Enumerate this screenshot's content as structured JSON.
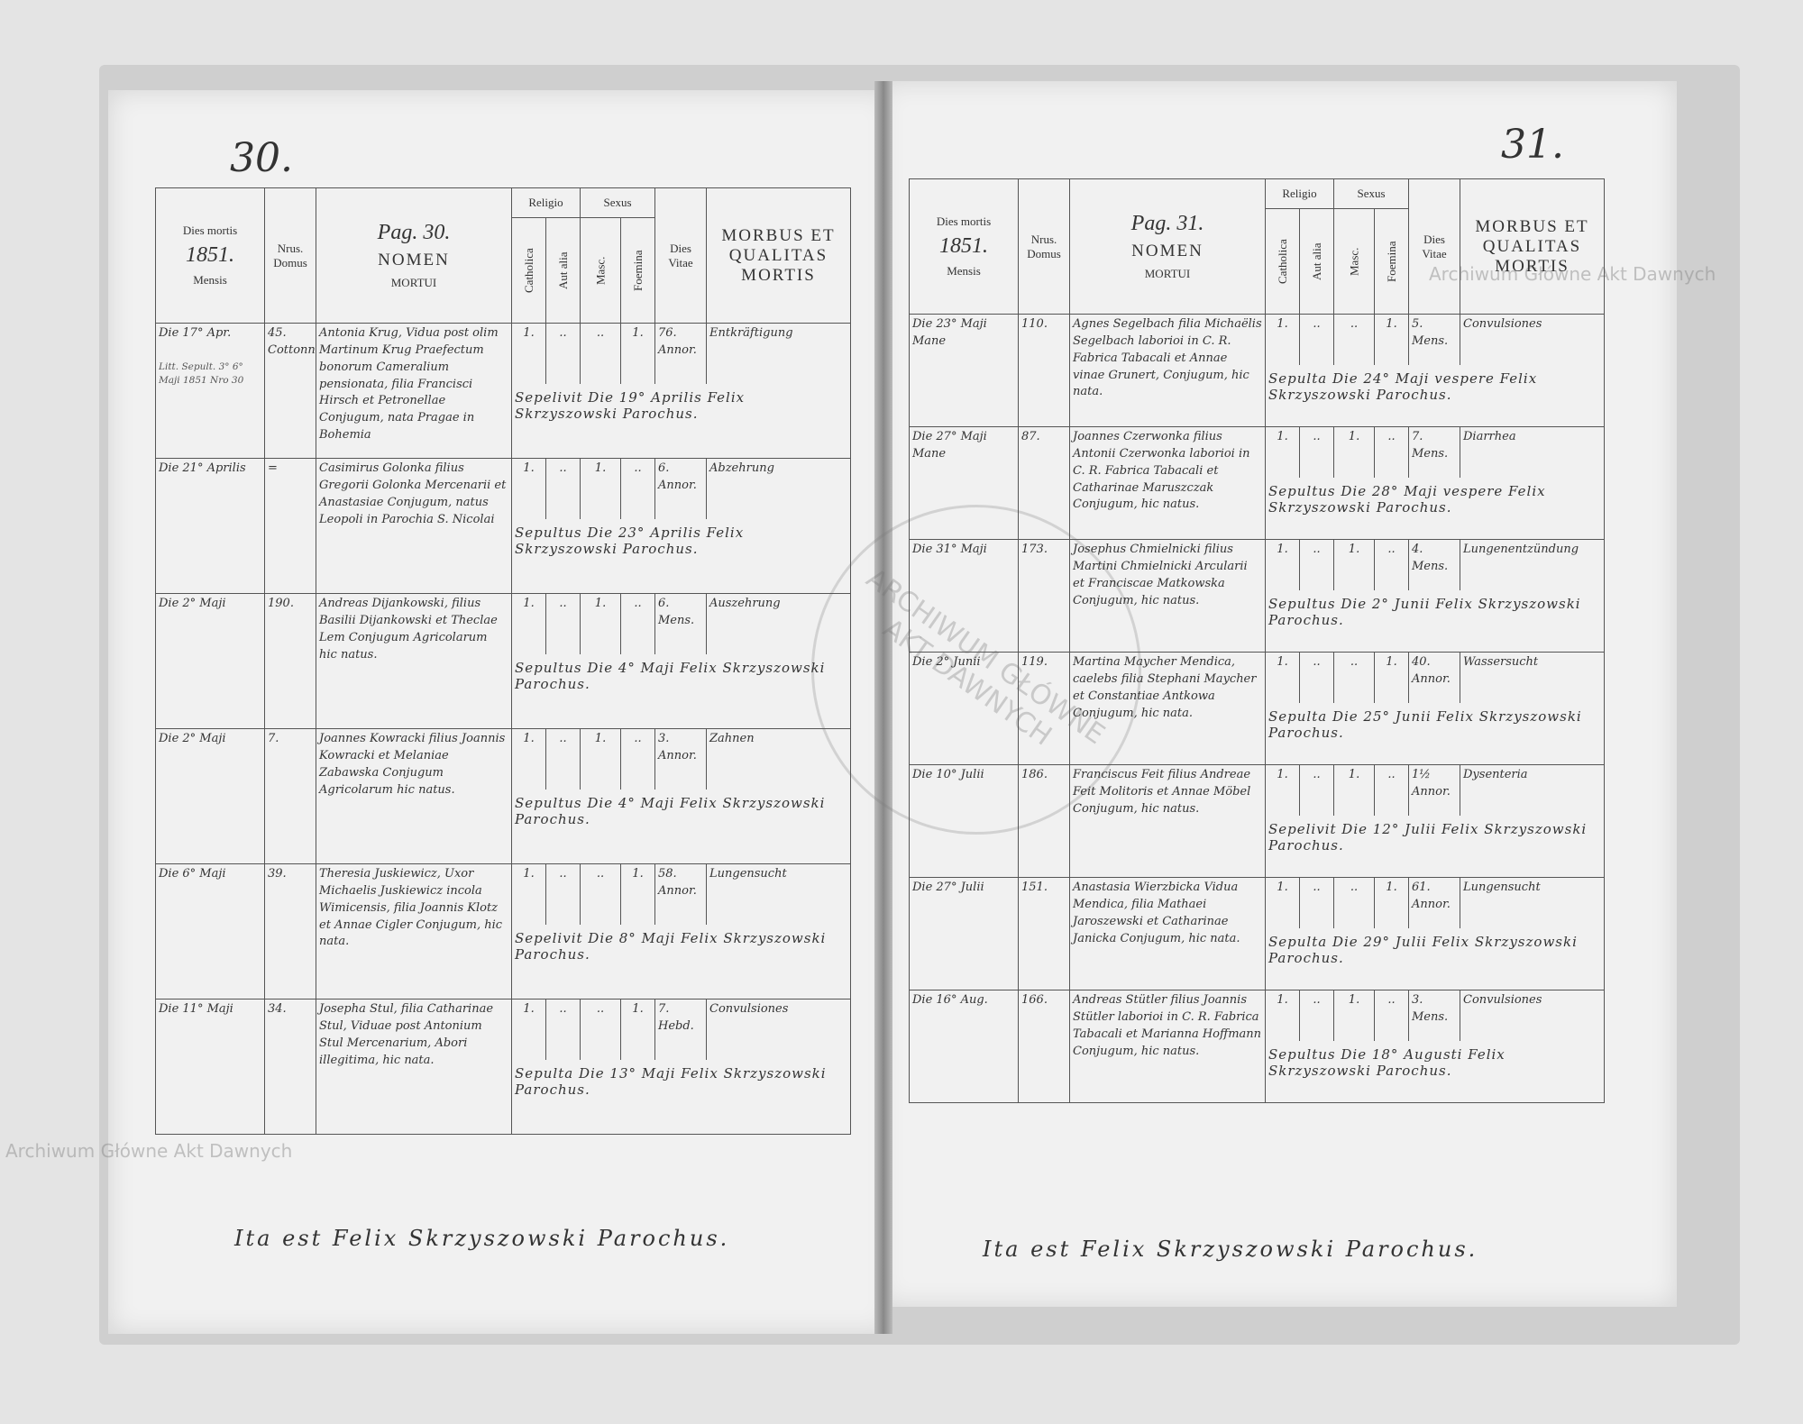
{
  "watermark": "Archiwum Główne Akt Dawnych",
  "stamp": "ARCHIWUM GŁÓWNE AKT DAWNYCH",
  "pages": [
    {
      "page_number": "30.",
      "headers": {
        "dies_mortis": "Dies mortis",
        "year": "1851.",
        "mensis": "Mensis",
        "domus": "Nrus. Domus",
        "pag": "Pag. 30.",
        "nomen": "NOMEN",
        "mortui": "MORTUI",
        "religio": "Religio",
        "catholica": "Catholica",
        "aut_alia": "Aut alia",
        "sexus": "Sexus",
        "masc": "Masc.",
        "foemina": "Foemina",
        "vitae": "Dies Vitae",
        "morbus": "MORBUS ET QUALITAS MORTIS"
      },
      "rows": [
        {
          "date": "Die 17° Apr.",
          "note": "Litt. Sepult. 3° 6° Maji 1851 Nro 30",
          "domus": "45. Cottonn.",
          "nomen": "Antonia Krug, Vidua post olim Martinum Krug Praefectum bonorum Cameralium pensionata, filia Francisci Hirsch et Petronellae Conjugum, nata Pragae in Bohemia",
          "catholica": "1.",
          "aut_alia": "..",
          "masc": "..",
          "foemina": "1.",
          "vitae": "76. Annor.",
          "morbus": "Entkräftigung",
          "sepultura": "Sepelivit Die 19° Aprilis Felix Skrzyszowski Parochus."
        },
        {
          "date": "Die 21° Aprilis",
          "domus": "=",
          "nomen": "Casimirus Golonka filius Gregorii Golonka Mercenarii et Anastasiae Conjugum, natus Leopoli in Parochia S. Nicolai",
          "catholica": "1.",
          "aut_alia": "..",
          "masc": "1.",
          "foemina": "..",
          "vitae": "6. Annor.",
          "morbus": "Abzehrung",
          "sepultura": "Sepultus Die 23° Aprilis Felix Skrzyszowski Parochus."
        },
        {
          "date": "Die 2° Maji",
          "domus": "190.",
          "nomen": "Andreas Dijankowski, filius Basilii Dijankowski et Theclae Lem Conjugum Agricolarum hic natus.",
          "catholica": "1.",
          "aut_alia": "..",
          "masc": "1.",
          "foemina": "..",
          "vitae": "6. Mens.",
          "morbus": "Auszehrung",
          "sepultura": "Sepultus Die 4° Maji Felix Skrzyszowski Parochus."
        },
        {
          "date": "Die 2° Maji",
          "domus": "7.",
          "nomen": "Joannes Kowracki filius Joannis Kowracki et Melaniae Zabawska Conjugum Agricolarum hic natus.",
          "catholica": "1.",
          "aut_alia": "..",
          "masc": "1.",
          "foemina": "..",
          "vitae": "3. Annor.",
          "morbus": "Zahnen",
          "sepultura": "Sepultus Die 4° Maji Felix Skrzyszowski Parochus."
        },
        {
          "date": "Die 6° Maji",
          "domus": "39.",
          "nomen": "Theresia Juskiewicz, Uxor Michaelis Juskiewicz incola Wimicensis, filia Joannis Klotz et Annae Cigler Conjugum, hic nata.",
          "catholica": "1.",
          "aut_alia": "..",
          "masc": "..",
          "foemina": "1.",
          "vitae": "58. Annor.",
          "morbus": "Lungensucht",
          "sepultura": "Sepelivit Die 8° Maji Felix Skrzyszowski Parochus."
        },
        {
          "date": "Die 11° Maji",
          "domus": "34.",
          "nomen": "Josepha Stul, filia Catharinae Stul, Viduae post Antonium Stul Mercenarium, Abori illegitima, hic nata.",
          "catholica": "1.",
          "aut_alia": "..",
          "masc": "..",
          "foemina": "1.",
          "vitae": "7. Hebd.",
          "morbus": "Convulsiones",
          "sepultura": "Sepulta Die 13° Maji Felix Skrzyszowski Parochus."
        }
      ],
      "footer": "Ita est Felix Skrzyszowski Parochus."
    },
    {
      "page_number": "31.",
      "headers": {
        "dies_mortis": "Dies mortis",
        "year": "1851.",
        "mensis": "Mensis",
        "domus": "Nrus. Domus",
        "pag": "Pag. 31.",
        "nomen": "NOMEN",
        "mortui": "MORTUI",
        "religio": "Religio",
        "catholica": "Catholica",
        "aut_alia": "Aut alia",
        "sexus": "Sexus",
        "masc": "Masc.",
        "foemina": "Foemina",
        "vitae": "Dies Vitae",
        "morbus": "MORBUS ET QUALITAS MORTIS"
      },
      "rows": [
        {
          "date": "Die 23° Maji Mane",
          "domus": "110.",
          "nomen": "Agnes Segelbach filia Michaëlis Segelbach laborioi in C. R. Fabrica Tabacali et Annae vinae Grunert, Conjugum, hic nata.",
          "catholica": "1.",
          "aut_alia": "..",
          "masc": "..",
          "foemina": "1.",
          "vitae": "5. Mens.",
          "morbus": "Convulsiones",
          "sepultura": "Sepulta Die 24° Maji vespere Felix Skrzyszowski Parochus."
        },
        {
          "date": "Die 27° Maji Mane",
          "domus": "87.",
          "nomen": "Joannes Czerwonka filius Antonii Czerwonka laborioi in C. R. Fabrica Tabacali et Catharinae Maruszczak Conjugum, hic natus.",
          "catholica": "1.",
          "aut_alia": "..",
          "masc": "1.",
          "foemina": "..",
          "vitae": "7. Mens.",
          "morbus": "Diarrhea",
          "sepultura": "Sepultus Die 28° Maji vespere Felix Skrzyszowski Parochus."
        },
        {
          "date": "Die 31° Maji",
          "domus": "173.",
          "nomen": "Josephus Chmielnicki filius Martini Chmielnicki Arcularii et Franciscae Matkowska Conjugum, hic natus.",
          "catholica": "1.",
          "aut_alia": "..",
          "masc": "1.",
          "foemina": "..",
          "vitae": "4. Mens.",
          "morbus": "Lungenentzündung",
          "sepultura": "Sepultus Die 2° Junii Felix Skrzyszowski Parochus."
        },
        {
          "date": "Die 2° Junii",
          "domus": "119.",
          "nomen": "Martina Maycher Mendica, caelebs filia Stephani Maycher et Constantiae Antkowa Conjugum, hic nata.",
          "catholica": "1.",
          "aut_alia": "..",
          "masc": "..",
          "foemina": "1.",
          "vitae": "40. Annor.",
          "morbus": "Wassersucht",
          "sepultura": "Sepulta Die 25° Junii Felix Skrzyszowski Parochus."
        },
        {
          "date": "Die 10° Julii",
          "domus": "186.",
          "nomen": "Franciscus Feit filius Andreae Feit Molitoris et Annae Möbel Conjugum, hic natus.",
          "catholica": "1.",
          "aut_alia": "..",
          "masc": "1.",
          "foemina": "..",
          "vitae": "1½ Annor.",
          "morbus": "Dysenteria",
          "sepultura": "Sepelivit Die 12° Julii Felix Skrzyszowski Parochus."
        },
        {
          "date": "Die 27° Julii",
          "domus": "151.",
          "nomen": "Anastasia Wierzbicka Vidua Mendica, filia Mathaei Jaroszewski et Catharinae Janicka Conjugum, hic nata.",
          "catholica": "1.",
          "aut_alia": "..",
          "masc": "..",
          "foemina": "1.",
          "vitae": "61. Annor.",
          "morbus": "Lungensucht",
          "sepultura": "Sepulta Die 29° Julii Felix Skrzyszowski Parochus."
        },
        {
          "date": "Die 16° Aug.",
          "domus": "166.",
          "nomen": "Andreas Stütler filius Joannis Stütler laborioi in C. R. Fabrica Tabacali et Marianna Hoffmann Conjugum, hic natus.",
          "catholica": "1.",
          "aut_alia": "..",
          "masc": "1.",
          "foemina": "..",
          "vitae": "3. Mens.",
          "morbus": "Convulsiones",
          "sepultura": "Sepultus Die 18° Augusti Felix Skrzyszowski Parochus."
        }
      ],
      "footer": "Ita est Felix Skrzyszowski Parochus."
    }
  ]
}
